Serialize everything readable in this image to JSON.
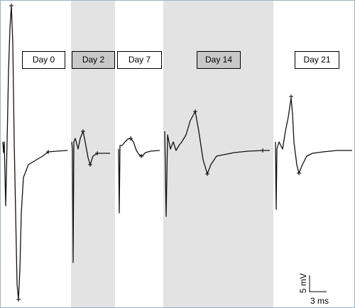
{
  "panels": [
    {
      "label": "Day 0"
    },
    {
      "label": "Day 2"
    },
    {
      "label": "Day 7"
    },
    {
      "label": "Day 14"
    },
    {
      "label": "Day 21"
    }
  ],
  "scale_bar": {
    "vertical": "5 mV",
    "horizontal": "3 ms"
  }
}
